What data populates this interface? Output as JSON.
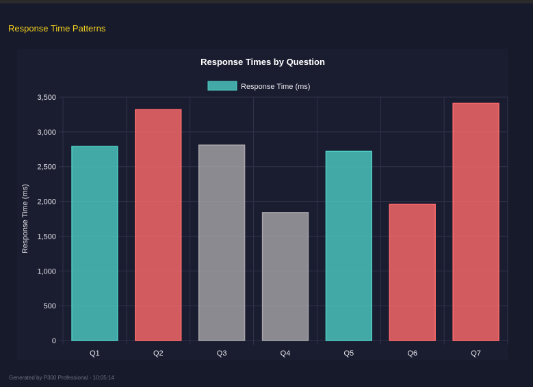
{
  "section_title": "Response Time Patterns",
  "footer": "Generated by P300 Professional - 10:05:14",
  "colors": {
    "teal": "#4ecdc4",
    "red": "#ff6b6b",
    "gray": "#a8a6aa",
    "title": "#f5d020"
  },
  "chart_data": {
    "type": "bar",
    "title": "Response Times by Question",
    "xlabel": "",
    "ylabel": "Response Time (ms)",
    "legend": {
      "label": "Response Time (ms)",
      "placement": "top"
    },
    "categories": [
      "Q1",
      "Q2",
      "Q3",
      "Q4",
      "Q5",
      "Q6",
      "Q7"
    ],
    "values": [
      2790,
      3320,
      2810,
      1840,
      2720,
      1960,
      3410
    ],
    "bar_colors": [
      "teal",
      "red",
      "gray",
      "gray",
      "teal",
      "red",
      "red"
    ],
    "ylim": [
      0,
      3500
    ],
    "yticks": [
      "0",
      "500",
      "1,000",
      "1,500",
      "2,000",
      "2,500",
      "3,000",
      "3,500"
    ],
    "grid": true
  }
}
